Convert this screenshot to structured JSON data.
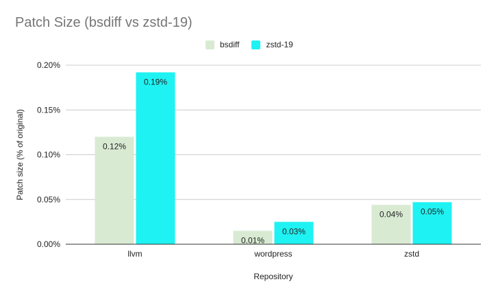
{
  "chart_data": {
    "type": "bar",
    "title": "Patch Size (bsdiff vs zstd-19)",
    "xlabel": "Repository",
    "ylabel": "Patch size (% of original)",
    "categories": [
      "llvm",
      "wordpress",
      "zstd"
    ],
    "series": [
      {
        "name": "bsdiff",
        "color": "#d9ead3",
        "values": [
          0.12,
          0.015,
          0.044
        ],
        "labels": [
          "0.12%",
          "0.01%",
          "0.04%"
        ]
      },
      {
        "name": "zstd-19",
        "color": "#1ff2f2",
        "values": [
          0.192,
          0.025,
          0.047
        ],
        "labels": [
          "0.19%",
          "0.03%",
          "0.05%"
        ]
      }
    ],
    "ylim": [
      0,
      0.2
    ],
    "yticks": [
      0,
      0.05,
      0.1,
      0.15,
      0.2
    ],
    "ytick_labels": [
      "0.00%",
      "0.05%",
      "0.10%",
      "0.15%",
      "0.20%"
    ],
    "grid": true,
    "legend_position": "top-center"
  }
}
